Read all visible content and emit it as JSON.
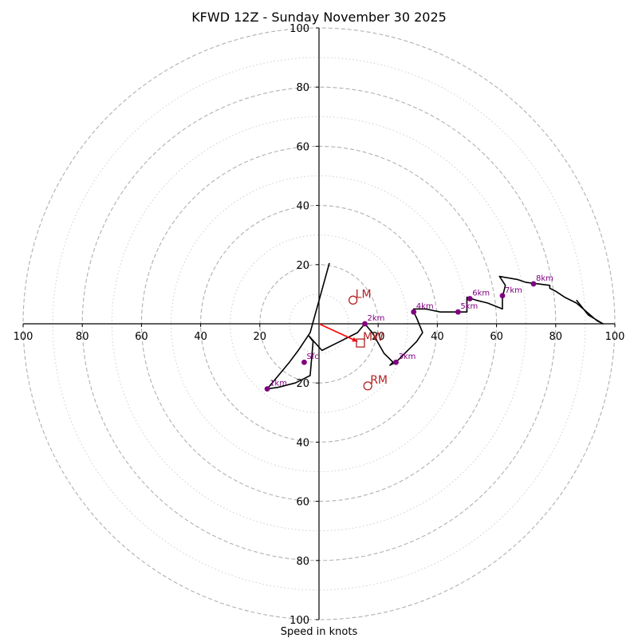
{
  "chart_data": {
    "type": "hodograph",
    "title": "KFWD 12Z - Sunday November 30 2025",
    "xlabel": "Speed in knots",
    "xlim": [
      -100,
      100
    ],
    "ylim": [
      -100,
      100
    ],
    "rings_major": [
      20,
      40,
      60,
      80,
      100
    ],
    "rings_minor": [
      10,
      30,
      50,
      70,
      90
    ],
    "x_tick_labels": [
      "100",
      "80",
      "60",
      "40",
      "20",
      "20",
      "40",
      "60",
      "80",
      "100"
    ],
    "x_tick_values": [
      -100,
      -80,
      -60,
      -40,
      -20,
      20,
      40,
      60,
      80,
      100
    ],
    "y_tick_labels_up": [
      "20",
      "40",
      "60",
      "80",
      "100"
    ],
    "y_tick_labels_down": [
      "20",
      "40",
      "60",
      "80",
      "100"
    ],
    "y_tick_values_up": [
      20,
      40,
      60,
      80,
      100
    ],
    "y_tick_values_down": [
      -20,
      -40,
      -60,
      -80,
      -100
    ],
    "trace": [
      [
        3.5,
        20.5
      ],
      [
        -3,
        -3
      ],
      [
        -7,
        -9
      ],
      [
        -10,
        -13
      ],
      [
        -17.5,
        -22
      ],
      [
        -14,
        -21.5
      ],
      [
        -8,
        -20
      ],
      [
        -3,
        -17.5
      ],
      [
        -2,
        -6
      ],
      [
        -3.5,
        -4
      ],
      [
        1,
        -9
      ],
      [
        7,
        -6
      ],
      [
        13,
        -3
      ],
      [
        15.5,
        0
      ],
      [
        18,
        -3
      ],
      [
        22,
        -10
      ],
      [
        25,
        -13
      ],
      [
        24,
        -14
      ],
      [
        26,
        -13
      ],
      [
        29,
        -10
      ],
      [
        33,
        -6
      ],
      [
        35,
        -3
      ],
      [
        33,
        2
      ],
      [
        32,
        4
      ],
      [
        32,
        5
      ],
      [
        36,
        5
      ],
      [
        41,
        4
      ],
      [
        47,
        4
      ],
      [
        50,
        4
      ],
      [
        50,
        9
      ],
      [
        53,
        8
      ],
      [
        57,
        7
      ],
      [
        62,
        5
      ],
      [
        62,
        9
      ],
      [
        63,
        13
      ],
      [
        61,
        16
      ],
      [
        67,
        15
      ],
      [
        70,
        14
      ],
      [
        74,
        13.5
      ],
      [
        78,
        13
      ],
      [
        78,
        12
      ],
      [
        80,
        11
      ],
      [
        83,
        9
      ],
      [
        87,
        7
      ],
      [
        94,
        1
      ],
      [
        96,
        0
      ],
      [
        91,
        3
      ],
      [
        87,
        8
      ]
    ],
    "height_markers": [
      {
        "label": "Sfc",
        "u": -5,
        "v": -13
      },
      {
        "label": "1km",
        "u": -17.5,
        "v": -22
      },
      {
        "label": "2km",
        "u": 15.5,
        "v": 0
      },
      {
        "label": "3km",
        "u": 26,
        "v": -13
      },
      {
        "label": "4km",
        "u": 32,
        "v": 4
      },
      {
        "label": "5km",
        "u": 47,
        "v": 4
      },
      {
        "label": "6km",
        "u": 51,
        "v": 8.5
      },
      {
        "label": "7km",
        "u": 62,
        "v": 9.5
      },
      {
        "label": "8km",
        "u": 72.5,
        "v": 13.5
      }
    ],
    "storm_motion": {
      "LM": {
        "label": "LM",
        "u": 11.5,
        "v": 8
      },
      "RM": {
        "label": "RM",
        "u": 16.5,
        "v": -21
      },
      "MW": {
        "label": "MW",
        "u": 14,
        "v": -6.5
      }
    },
    "shear_vector": {
      "u": 13,
      "v": -6
    },
    "colors": {
      "trace": "#000000",
      "marker": "#800080",
      "storm": "#b22222",
      "shear": "#ff0000",
      "ring": "#b0b0b0"
    }
  }
}
